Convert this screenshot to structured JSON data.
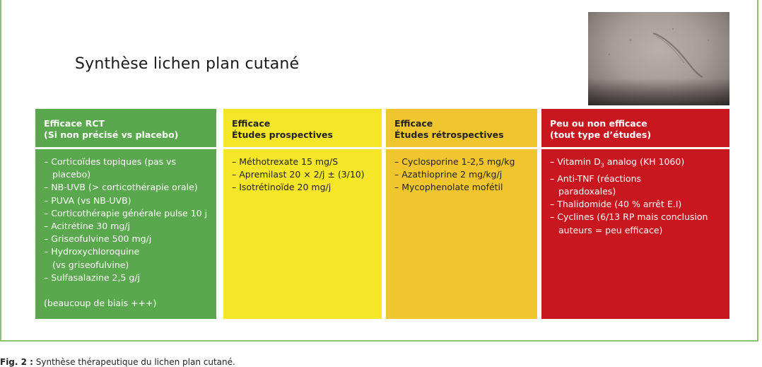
{
  "title": "Synthèse lichen plan cutané",
  "columns": [
    {
      "header": [
        "Efficace RCT",
        "(Si non précisé vs placebo)"
      ],
      "items": [
        "– Corticoïdes topiques (pas vs",
        "placebo)",
        "– NB-UVB (> corticothérapie orale)",
        "– PUVA (vs NB-UVB)",
        "– Corticothérapie générale pulse 10 j",
        "– Acitrétine 30 mg/j",
        "– Griseofulvine 500 mg/j",
        "– Hydroxychloroquine",
        "(vs griseofulvine)",
        "– Sulfasalazine 2,5 g/j"
      ],
      "note": "(beaucoup de biais +++)",
      "color": "#5aa84d"
    },
    {
      "header": [
        "Efficace",
        "Études prospectives"
      ],
      "items": [
        "– Méthotrexate 15 mg/S",
        "– Apremilast 20 × 2/j ± (3/10)",
        "– Isotrétinoïde 20 mg/j"
      ],
      "color": "#f5e727"
    },
    {
      "header": [
        "Efficace",
        "Études rétrospectives"
      ],
      "items": [
        "– Cyclosporine 1-2,5 mg/kg",
        "– Azathioprine 2 mg/kg/j",
        "– Mycophenolate mofétil"
      ],
      "color": "#f1c52d"
    },
    {
      "header": [
        "Peu ou non efficace",
        "(tout type d’études)"
      ],
      "items": [
        "– Vitamin D",
        "3",
        "analog (KH 1060)",
        "– Anti-TNF (réactions",
        "paradoxales)",
        "– Thalidomide (40 % arrêt E.I)",
        "– Cyclines (6/13 RP mais conclusion",
        "auteurs = peu efficace)"
      ],
      "color": "#c8171e"
    }
  ],
  "caption": {
    "label": "Fig. 2 :",
    "text": "Synthèse thérapeutique du lichen plan cutané."
  }
}
